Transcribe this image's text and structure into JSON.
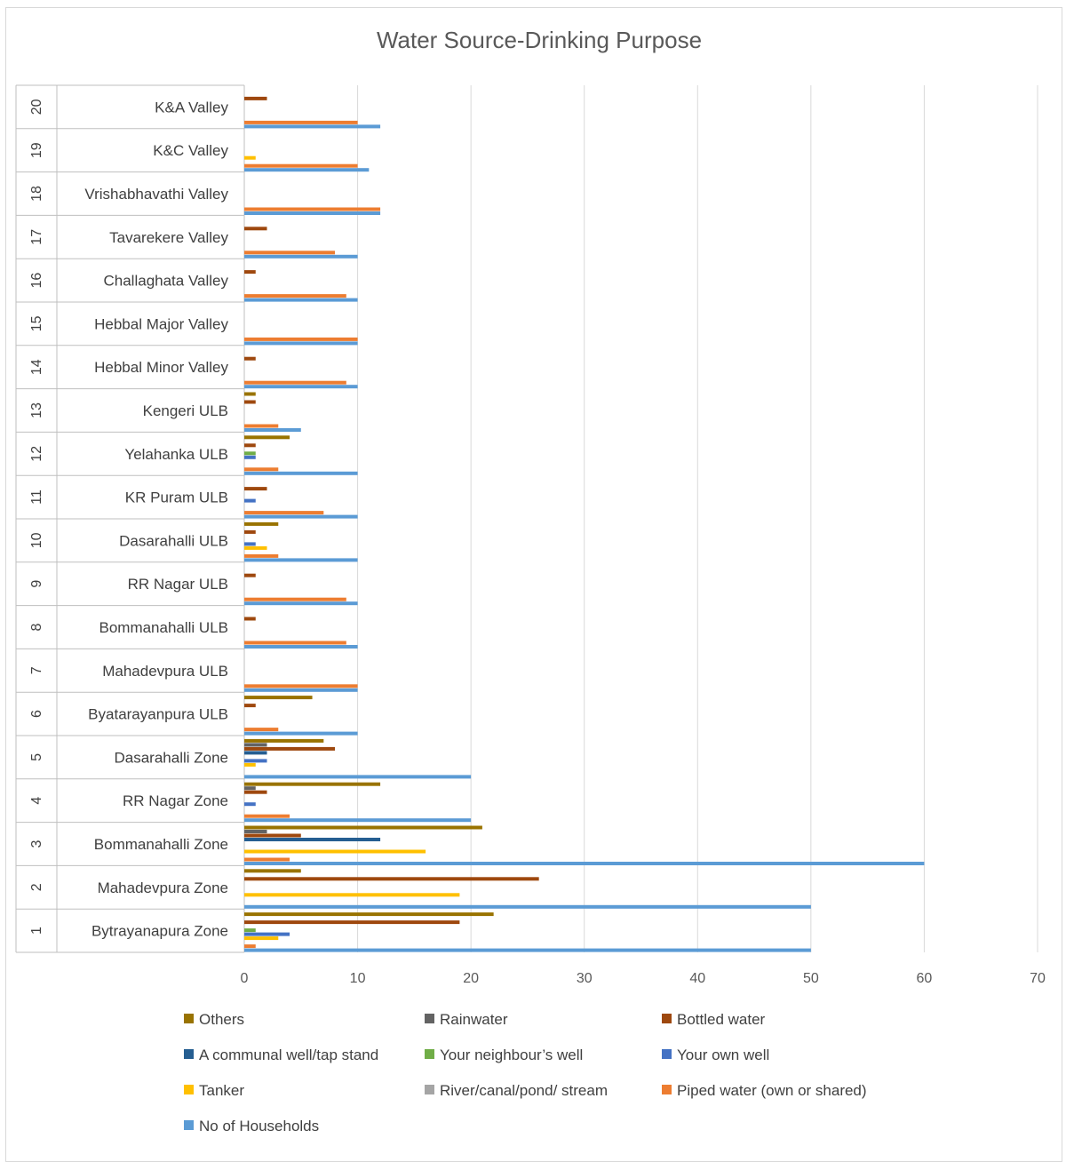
{
  "chart_data": {
    "type": "bar",
    "orientation": "horizontal",
    "title": "Water Source-Drinking Purpose",
    "xlim": [
      0,
      70
    ],
    "x_ticks": [
      0,
      10,
      20,
      30,
      40,
      50,
      60,
      70
    ],
    "grid": true,
    "legend_position": "bottom",
    "categories": [
      {
        "num": "1",
        "name": "Bytrayanapura Zone"
      },
      {
        "num": "2",
        "name": "Mahadevpura Zone"
      },
      {
        "num": "3",
        "name": "Bommanahalli Zone"
      },
      {
        "num": "4",
        "name": "RR Nagar Zone"
      },
      {
        "num": "5",
        "name": "Dasarahalli  Zone"
      },
      {
        "num": "6",
        "name": "Byatarayanpura ULB"
      },
      {
        "num": "7",
        "name": "Mahadevpura ULB"
      },
      {
        "num": "8",
        "name": "Bommanahalli ULB"
      },
      {
        "num": "9",
        "name": "RR Nagar  ULB"
      },
      {
        "num": "10",
        "name": "Dasarahalli ULB"
      },
      {
        "num": "11",
        "name": "KR Puram ULB"
      },
      {
        "num": "12",
        "name": "Yelahanka ULB"
      },
      {
        "num": "13",
        "name": "Kengeri ULB"
      },
      {
        "num": "14",
        "name": "Hebbal Minor Valley"
      },
      {
        "num": "15",
        "name": "Hebbal Major Valley"
      },
      {
        "num": "16",
        "name": "Challaghata Valley"
      },
      {
        "num": "17",
        "name": "Tavarekere Valley"
      },
      {
        "num": "18",
        "name": "Vrishabhavathi Valley"
      },
      {
        "num": "19",
        "name": "K&C Valley"
      },
      {
        "num": "20",
        "name": "K&A Valley"
      }
    ],
    "series": [
      {
        "name": "No of Households",
        "color": "#5b9bd5",
        "values": [
          50,
          50,
          60,
          20,
          20,
          10,
          10,
          10,
          10,
          10,
          10,
          10,
          5,
          10,
          10,
          10,
          10,
          12,
          11,
          12
        ]
      },
      {
        "name": "Piped water (own or shared)",
        "color": "#ed7d31",
        "values": [
          1,
          0,
          4,
          4,
          0,
          3,
          10,
          9,
          9,
          3,
          7,
          3,
          3,
          9,
          10,
          9,
          8,
          12,
          10,
          10
        ]
      },
      {
        "name": "River/canal/pond/ stream",
        "color": "#a5a5a5",
        "values": [
          0,
          0,
          0,
          0,
          0,
          0,
          0,
          0,
          0,
          0,
          0,
          0,
          0,
          0,
          0,
          0,
          0,
          0,
          0,
          0
        ]
      },
      {
        "name": "Tanker",
        "color": "#ffc000",
        "values": [
          3,
          19,
          16,
          0,
          1,
          0,
          0,
          0,
          0,
          2,
          0,
          0,
          0,
          0,
          0,
          0,
          0,
          0,
          1,
          0
        ]
      },
      {
        "name": "Your own well",
        "color": "#4472c4",
        "values": [
          4,
          0,
          0,
          1,
          2,
          0,
          0,
          0,
          0,
          1,
          1,
          1,
          0,
          0,
          0,
          0,
          0,
          0,
          0,
          0
        ]
      },
      {
        "name": "Your neighbour’s well",
        "color": "#70ad47",
        "values": [
          1,
          0,
          0,
          0,
          0,
          0,
          0,
          0,
          0,
          0,
          0,
          1,
          0,
          0,
          0,
          0,
          0,
          0,
          0,
          0
        ]
      },
      {
        "name": "A communal well/tap stand",
        "color": "#255e91",
        "values": [
          0,
          0,
          12,
          0,
          2,
          0,
          0,
          0,
          0,
          0,
          0,
          0,
          0,
          0,
          0,
          0,
          0,
          0,
          0,
          0
        ]
      },
      {
        "name": "Bottled water",
        "color": "#9e480e",
        "values": [
          19,
          26,
          5,
          2,
          8,
          1,
          0,
          1,
          1,
          1,
          2,
          1,
          1,
          1,
          0,
          1,
          2,
          0,
          0,
          2
        ]
      },
      {
        "name": "Rainwater",
        "color": "#636363",
        "values": [
          0,
          0,
          2,
          1,
          2,
          0,
          0,
          0,
          0,
          0,
          0,
          0,
          0,
          0,
          0,
          0,
          0,
          0,
          0,
          0
        ]
      },
      {
        "name": "Others",
        "color": "#997300",
        "values": [
          22,
          5,
          21,
          12,
          7,
          6,
          0,
          0,
          0,
          3,
          0,
          4,
          1,
          0,
          0,
          0,
          0,
          0,
          0,
          0
        ]
      }
    ],
    "legend_order": [
      "Others",
      "Rainwater",
      "Bottled water",
      "A communal well/tap stand",
      "Your neighbour’s well",
      "Your own well",
      "Tanker",
      "River/canal/pond/ stream",
      "Piped water (own or shared)",
      "No of Households"
    ]
  }
}
